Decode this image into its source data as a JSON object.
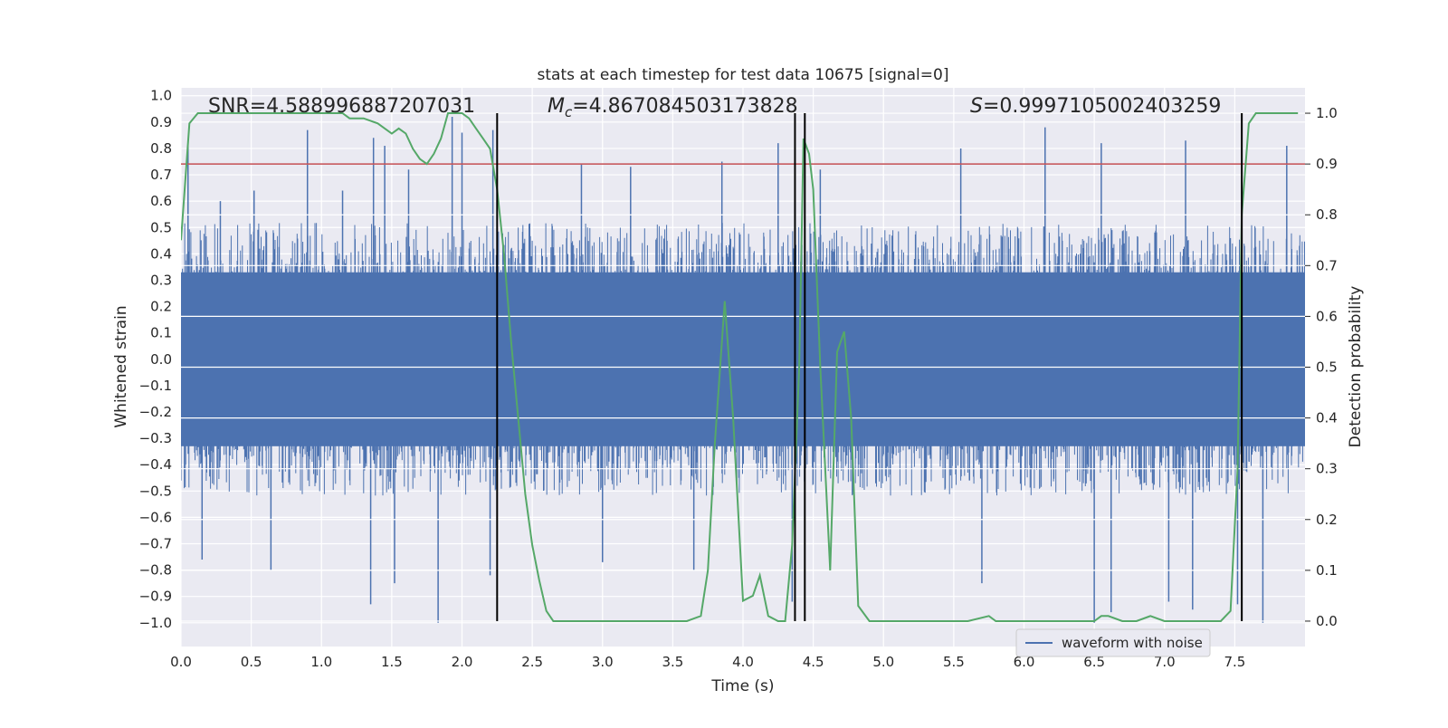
{
  "chart_data": {
    "type": "line",
    "title": "stats at each timestep for test data 10675 [signal=0]",
    "xlabel": "Time (s)",
    "ylabel_left": "Whitened strain",
    "ylabel_right": "Detection probability",
    "xlim": [
      0,
      8
    ],
    "ylim_left": [
      -1.09,
      1.03
    ],
    "ylim_right": [
      -0.05,
      1.05
    ],
    "x_ticks": [
      "0.0",
      "0.5",
      "1.0",
      "1.5",
      "2.0",
      "2.5",
      "3.0",
      "3.5",
      "4.0",
      "4.5",
      "5.0",
      "5.5",
      "6.0",
      "6.5",
      "7.0",
      "7.5"
    ],
    "y_ticks_left": [
      "1.0",
      "0.9",
      "0.8",
      "0.7",
      "0.6",
      "0.5",
      "0.4",
      "0.3",
      "0.2",
      "0.1",
      "0.0",
      "-0.1",
      "-0.2",
      "-0.3",
      "-0.4",
      "-0.5",
      "-0.6",
      "-0.7",
      "-0.8",
      "-0.9",
      "-1.0"
    ],
    "y_ticks_right": [
      "1.0",
      "0.9",
      "0.8",
      "0.7",
      "0.6",
      "0.5",
      "0.4",
      "0.3",
      "0.2",
      "0.1",
      "0.0"
    ],
    "grid": true,
    "legend_position": "lower-right",
    "annotations": {
      "snr": "SNR=4.588996887207031",
      "mc": "=4.867084503173828",
      "mc_symbol": "M",
      "mc_sub": "c",
      "s": "=0.9997105002403259",
      "s_symbol": "S"
    },
    "threshold_probability": 0.9,
    "vertical_lines_s": [
      2.25,
      4.37,
      4.44,
      7.55
    ],
    "series": [
      {
        "name": "waveform with noise",
        "axis": "left",
        "color": "#4c72b0",
        "envelope_typical": [
          -0.45,
          0.45
        ],
        "spikes": [
          {
            "x": 0.05,
            "value": 0.81
          },
          {
            "x": 0.28,
            "value": 0.6
          },
          {
            "x": 0.52,
            "value": 0.64
          },
          {
            "x": 0.9,
            "value": 0.87
          },
          {
            "x": 1.15,
            "value": 0.64
          },
          {
            "x": 1.37,
            "value": 0.84
          },
          {
            "x": 1.45,
            "value": 0.81
          },
          {
            "x": 1.62,
            "value": 0.72
          },
          {
            "x": 1.93,
            "value": 0.92
          },
          {
            "x": 2.0,
            "value": 0.86
          },
          {
            "x": 2.22,
            "value": 0.87
          },
          {
            "x": 2.85,
            "value": 0.74
          },
          {
            "x": 3.2,
            "value": 0.73
          },
          {
            "x": 3.85,
            "value": 0.75
          },
          {
            "x": 4.25,
            "value": 0.82
          },
          {
            "x": 4.55,
            "value": 0.72
          },
          {
            "x": 5.55,
            "value": 0.8
          },
          {
            "x": 6.15,
            "value": 0.88
          },
          {
            "x": 6.55,
            "value": 0.82
          },
          {
            "x": 7.15,
            "value": 0.83
          },
          {
            "x": 7.87,
            "value": 0.81
          },
          {
            "x": 0.15,
            "value": -0.76
          },
          {
            "x": 0.64,
            "value": -0.8
          },
          {
            "x": 1.35,
            "value": -0.93
          },
          {
            "x": 1.52,
            "value": -0.85
          },
          {
            "x": 1.83,
            "value": -1.0
          },
          {
            "x": 2.2,
            "value": -0.82
          },
          {
            "x": 3.0,
            "value": -0.77
          },
          {
            "x": 3.65,
            "value": -0.8
          },
          {
            "x": 4.35,
            "value": -0.92
          },
          {
            "x": 5.7,
            "value": -0.85
          },
          {
            "x": 6.5,
            "value": -1.0
          },
          {
            "x": 6.62,
            "value": -0.96
          },
          {
            "x": 7.03,
            "value": -0.92
          },
          {
            "x": 7.2,
            "value": -0.95
          },
          {
            "x": 7.52,
            "value": -0.93
          },
          {
            "x": 7.7,
            "value": -1.0
          }
        ]
      },
      {
        "name": "",
        "axis": "right",
        "color": "#55a868",
        "x": [
          0.0,
          0.06,
          0.12,
          0.2,
          0.4,
          0.6,
          0.8,
          1.0,
          1.15,
          1.2,
          1.3,
          1.4,
          1.5,
          1.55,
          1.6,
          1.65,
          1.7,
          1.75,
          1.8,
          1.85,
          1.9,
          1.95,
          2.0,
          2.05,
          2.1,
          2.15,
          2.2,
          2.25,
          2.3,
          2.35,
          2.4,
          2.45,
          2.5,
          2.55,
          2.6,
          2.65,
          2.7,
          2.8,
          2.9,
          3.0,
          3.1,
          3.2,
          3.3,
          3.4,
          3.5,
          3.6,
          3.7,
          3.75,
          3.8,
          3.87,
          3.93,
          4.0,
          4.07,
          4.12,
          4.18,
          4.25,
          4.3,
          4.35,
          4.4,
          4.43,
          4.47,
          4.5,
          4.55,
          4.62,
          4.67,
          4.72,
          4.77,
          4.82,
          4.9,
          5.0,
          5.2,
          5.4,
          5.6,
          5.75,
          5.8,
          5.9,
          6.0,
          6.2,
          6.4,
          6.5,
          6.55,
          6.6,
          6.7,
          6.8,
          6.9,
          7.0,
          7.1,
          7.2,
          7.3,
          7.4,
          7.47,
          7.52,
          7.55,
          7.6,
          7.65,
          7.7,
          7.8,
          7.95
        ],
        "values": [
          0.75,
          0.98,
          1.0,
          1.0,
          1.0,
          1.0,
          1.0,
          1.0,
          1.0,
          0.99,
          0.99,
          0.98,
          0.96,
          0.97,
          0.96,
          0.93,
          0.91,
          0.9,
          0.92,
          0.95,
          1.0,
          1.0,
          1.0,
          0.99,
          0.97,
          0.95,
          0.93,
          0.85,
          0.72,
          0.55,
          0.4,
          0.25,
          0.15,
          0.08,
          0.02,
          0.0,
          0.0,
          0.0,
          0.0,
          0.0,
          0.0,
          0.0,
          0.0,
          0.0,
          0.0,
          0.0,
          0.01,
          0.1,
          0.35,
          0.63,
          0.4,
          0.04,
          0.05,
          0.09,
          0.01,
          0.0,
          0.0,
          0.15,
          0.5,
          0.95,
          0.92,
          0.85,
          0.5,
          0.1,
          0.53,
          0.57,
          0.4,
          0.03,
          0.0,
          0.0,
          0.0,
          0.0,
          0.0,
          0.01,
          0.0,
          0.0,
          0.0,
          0.0,
          0.0,
          0.0,
          0.01,
          0.01,
          0.0,
          0.0,
          0.01,
          0.0,
          0.0,
          0.0,
          0.0,
          0.0,
          0.02,
          0.3,
          0.8,
          0.98,
          1.0,
          1.0,
          1.0,
          1.0
        ]
      }
    ]
  }
}
